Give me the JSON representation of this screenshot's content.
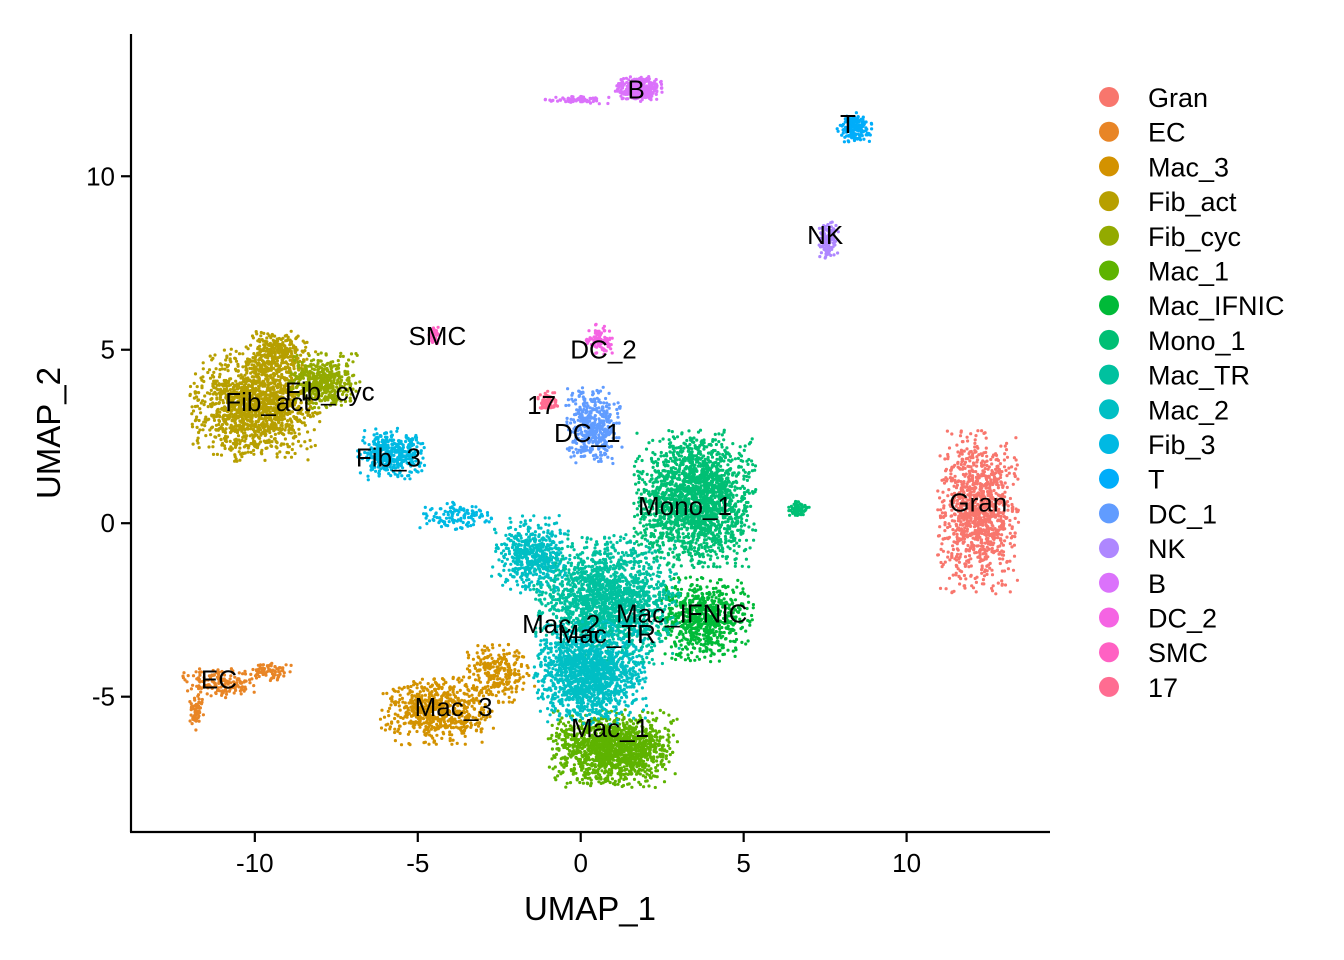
{
  "chart_data": {
    "type": "scatter",
    "title": "",
    "xlabel": "UMAP_1",
    "ylabel": "UMAP_2",
    "xlim": [
      -13.8,
      14.4
    ],
    "ylim": [
      -8.9,
      14.1
    ],
    "x_ticks": [
      -10,
      -5,
      0,
      5,
      10
    ],
    "x_tick_labels": [
      "-10",
      "-5",
      "0",
      "5",
      "10"
    ],
    "y_ticks": [
      -5,
      0,
      5,
      10
    ],
    "y_tick_labels": [
      "-5",
      "0",
      "5",
      "10"
    ],
    "grid": false,
    "legend_position": "right",
    "clusters": [
      {
        "name": "Gran",
        "color": "#F8766D",
        "label": "Gran",
        "label_pos": [
          12.2,
          0.6
        ],
        "blobs": [
          [
            12.2,
            0.3,
            1.0,
            1.9,
            1100
          ]
        ]
      },
      {
        "name": "EC",
        "color": "#E88526",
        "label": "EC",
        "label_pos": [
          -11.1,
          -4.5
        ],
        "blobs": [
          [
            -11.0,
            -4.6,
            1.0,
            0.35,
            160
          ],
          [
            -11.8,
            -5.4,
            0.2,
            0.45,
            60
          ],
          [
            -9.6,
            -4.3,
            0.6,
            0.25,
            80
          ]
        ]
      },
      {
        "name": "Mac_3",
        "color": "#D39200",
        "label": "Mac_3",
        "label_pos": [
          -3.9,
          -5.3
        ],
        "blobs": [
          [
            -4.4,
            -5.4,
            1.4,
            0.8,
            650
          ],
          [
            -2.5,
            -4.3,
            0.9,
            0.7,
            250
          ]
        ]
      },
      {
        "name": "Fib_act",
        "color": "#B79F00",
        "label": "Fib_act",
        "label_pos": [
          -9.6,
          3.5
        ],
        "blobs": [
          [
            -10.0,
            3.4,
            1.6,
            1.3,
            1500
          ],
          [
            -9.3,
            4.9,
            0.8,
            0.6,
            300
          ]
        ]
      },
      {
        "name": "Fib_cyc",
        "color": "#93AA00",
        "label": "Fib_cyc",
        "label_pos": [
          -7.7,
          3.8
        ],
        "blobs": [
          [
            -7.9,
            4.1,
            0.9,
            0.65,
            450
          ]
        ]
      },
      {
        "name": "Mac_1",
        "color": "#5EB300",
        "label": "Mac_1",
        "label_pos": [
          0.9,
          -5.9
        ],
        "blobs": [
          [
            1.0,
            -6.5,
            1.6,
            0.9,
            1400
          ]
        ]
      },
      {
        "name": "Mac_IFNIC",
        "color": "#00BA38",
        "label": "Mac_IFNIC",
        "label_pos": [
          3.1,
          -2.6
        ],
        "blobs": [
          [
            3.8,
            -2.8,
            1.2,
            1.0,
            700
          ]
        ]
      },
      {
        "name": "Mono_1",
        "color": "#00BF74",
        "label": "Mono_1",
        "label_pos": [
          3.2,
          0.5
        ],
        "blobs": [
          [
            3.5,
            0.7,
            1.5,
            1.6,
            2000
          ],
          [
            6.7,
            0.4,
            0.3,
            0.2,
            60
          ]
        ]
      },
      {
        "name": "Mac_TR",
        "color": "#00C19F",
        "label": "Mac_TR",
        "label_pos": [
          0.8,
          -3.2
        ],
        "blobs": [
          [
            0.8,
            -2.2,
            1.8,
            1.5,
            1800
          ]
        ]
      },
      {
        "name": "Mac_2",
        "color": "#00BFC4",
        "label": "Mac_2",
        "label_pos": [
          -0.6,
          -2.9
        ],
        "blobs": [
          [
            0.3,
            -4.3,
            1.4,
            1.2,
            1500
          ],
          [
            -1.5,
            -0.9,
            1.0,
            0.9,
            500
          ]
        ]
      },
      {
        "name": "Fib_3",
        "color": "#00B9E3",
        "label": "Fib_3",
        "label_pos": [
          -5.9,
          1.9
        ],
        "blobs": [
          [
            -5.8,
            2.0,
            0.9,
            0.6,
            400
          ],
          [
            -3.8,
            0.2,
            1.0,
            0.35,
            120
          ]
        ]
      },
      {
        "name": "T",
        "color": "#00ADFA",
        "label": "T",
        "label_pos": [
          8.2,
          11.5
        ],
        "blobs": [
          [
            8.4,
            11.4,
            0.45,
            0.35,
            180
          ]
        ]
      },
      {
        "name": "DC_1",
        "color": "#619CFF",
        "label": "DC_1",
        "label_pos": [
          0.2,
          2.6
        ],
        "blobs": [
          [
            0.4,
            2.8,
            0.7,
            0.9,
            450
          ]
        ]
      },
      {
        "name": "NK",
        "color": "#AE87FF",
        "label": "NK",
        "label_pos": [
          7.5,
          8.3
        ],
        "blobs": [
          [
            7.6,
            8.2,
            0.25,
            0.45,
            120
          ]
        ]
      },
      {
        "name": "B",
        "color": "#DB72FB",
        "label": "B",
        "label_pos": [
          1.7,
          12.5
        ],
        "blobs": [
          [
            1.8,
            12.5,
            0.6,
            0.3,
            320
          ],
          [
            -0.1,
            12.2,
            0.8,
            0.1,
            70
          ]
        ]
      },
      {
        "name": "DC_2",
        "color": "#F564E3",
        "label": "DC_2",
        "label_pos": [
          0.7,
          5.0
        ],
        "blobs": [
          [
            0.6,
            5.3,
            0.35,
            0.35,
            90
          ]
        ]
      },
      {
        "name": "SMC",
        "color": "#FF61C3",
        "label": "SMC",
        "label_pos": [
          -4.4,
          5.4
        ],
        "blobs": [
          [
            -4.5,
            5.4,
            0.15,
            0.25,
            40
          ]
        ]
      },
      {
        "name": "17",
        "color": "#FF6C91",
        "label": "17",
        "label_pos": [
          -1.2,
          3.4
        ],
        "blobs": [
          [
            -1.0,
            3.5,
            0.3,
            0.25,
            70
          ]
        ]
      }
    ]
  }
}
